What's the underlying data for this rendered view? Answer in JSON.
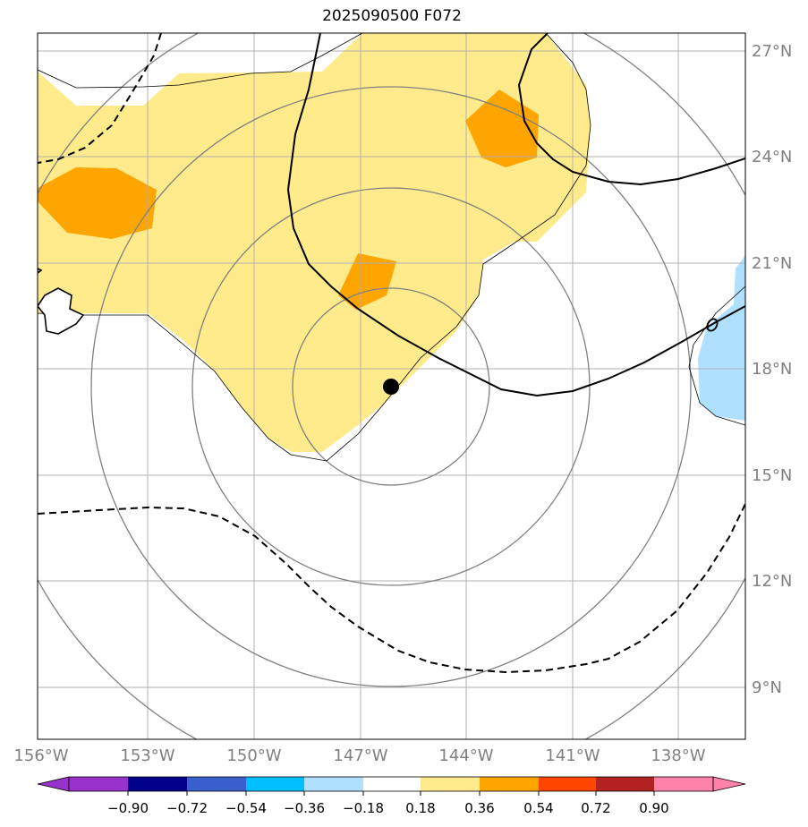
{
  "title": "2025090500 F072",
  "lon_labels": [
    "156°W",
    "153°W",
    "150°W",
    "147°W",
    "144°W",
    "141°W",
    "138°W"
  ],
  "lat_labels": [
    "27°N",
    "24°N",
    "21°N",
    "18°N",
    "15°N",
    "12°N",
    "9°N"
  ],
  "colorbar": {
    "ticks": [
      "−0.90",
      "−0.72",
      "−0.54",
      "−0.36",
      "−0.18",
      "0.18",
      "0.36",
      "0.54",
      "0.72",
      "0.90"
    ],
    "colors": [
      "#9932cc",
      "#00008b",
      "#3a5fcd",
      "#00bfff",
      "#b0e0ff",
      "#ffffff",
      "#ffeb8c",
      "#ffa500",
      "#ff4500",
      "#b22222",
      "#ff82ab"
    ]
  },
  "storm_center": {
    "lon": -146.1,
    "lat": 17.5
  }
}
